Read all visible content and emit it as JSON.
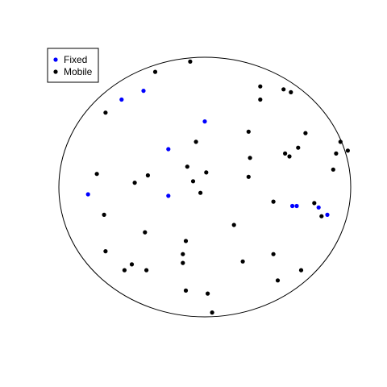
{
  "chart_data": {
    "type": "scatter",
    "title": "",
    "xlabel": "",
    "ylabel": "",
    "axes_visible": false,
    "grid": false,
    "legend_position": "top-left",
    "boundary": {
      "shape": "ellipse",
      "cx": 0.0,
      "cy": 0.0,
      "rx": 1.0,
      "ry": 0.89
    },
    "xlim": [
      -1.0,
      1.0
    ],
    "ylim": [
      -0.89,
      0.89
    ],
    "series": [
      {
        "name": "Fixed",
        "color": "#0000ff",
        "points": [
          [
            -0.57,
            0.6
          ],
          [
            -0.42,
            0.66
          ],
          [
            0.0,
            0.45
          ],
          [
            -0.25,
            0.26
          ],
          [
            -0.8,
            -0.05
          ],
          [
            -0.25,
            -0.06
          ],
          [
            0.6,
            -0.13
          ],
          [
            0.63,
            -0.13
          ],
          [
            0.78,
            -0.14
          ],
          [
            0.84,
            -0.19
          ]
        ]
      },
      {
        "name": "Mobile",
        "color": "#000000",
        "points": [
          [
            -0.34,
            0.79
          ],
          [
            -0.1,
            0.86
          ],
          [
            0.38,
            0.69
          ],
          [
            0.54,
            0.67
          ],
          [
            0.59,
            0.65
          ],
          [
            0.38,
            0.6
          ],
          [
            -0.68,
            0.51
          ],
          [
            0.3,
            0.38
          ],
          [
            0.69,
            0.37
          ],
          [
            -0.06,
            0.31
          ],
          [
            0.64,
            0.27
          ],
          [
            0.93,
            0.31
          ],
          [
            0.98,
            0.25
          ],
          [
            0.9,
            0.23
          ],
          [
            0.55,
            0.23
          ],
          [
            0.58,
            0.21
          ],
          [
            0.31,
            0.2
          ],
          [
            -0.12,
            0.14
          ],
          [
            0.88,
            0.12
          ],
          [
            -0.74,
            0.09
          ],
          [
            -0.39,
            0.08
          ],
          [
            0.01,
            0.1
          ],
          [
            0.3,
            0.07
          ],
          [
            -0.48,
            0.03
          ],
          [
            -0.08,
            0.04
          ],
          [
            -0.03,
            -0.04
          ],
          [
            0.47,
            -0.1
          ],
          [
            0.75,
            -0.11
          ],
          [
            -0.69,
            -0.19
          ],
          [
            0.8,
            -0.2
          ],
          [
            0.2,
            -0.26
          ],
          [
            -0.41,
            -0.31
          ],
          [
            -0.13,
            -0.37
          ],
          [
            -0.68,
            -0.44
          ],
          [
            0.47,
            -0.46
          ],
          [
            -0.15,
            -0.46
          ],
          [
            0.26,
            -0.51
          ],
          [
            -0.15,
            -0.52
          ],
          [
            -0.5,
            -0.53
          ],
          [
            -0.55,
            -0.57
          ],
          [
            -0.4,
            -0.57
          ],
          [
            0.66,
            -0.57
          ],
          [
            0.5,
            -0.64
          ],
          [
            -0.13,
            -0.71
          ],
          [
            0.02,
            -0.73
          ],
          [
            0.05,
            -0.86
          ]
        ]
      }
    ]
  }
}
